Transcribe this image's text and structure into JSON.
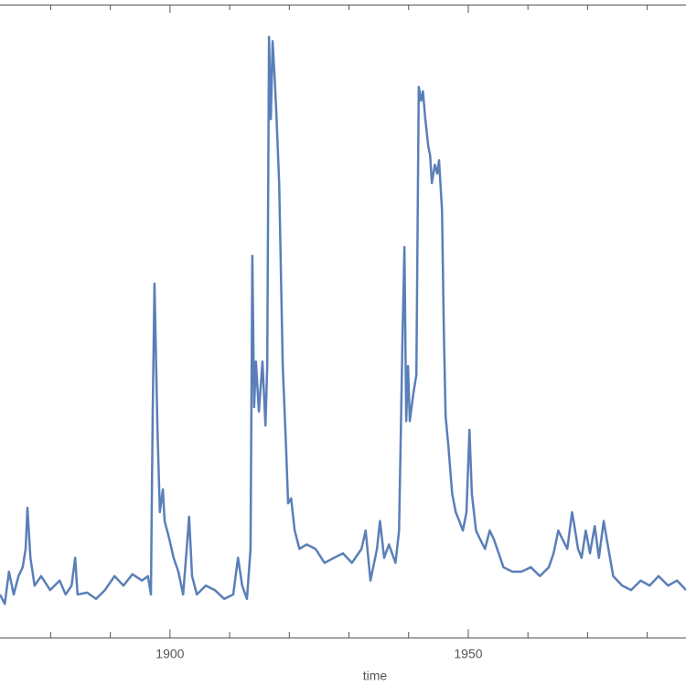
{
  "chart_data": {
    "type": "line",
    "x_label": "time",
    "xlim": [
      1871.5,
      1986.5
    ],
    "ylim": [
      0,
      100
    ],
    "xticks": [
      1900,
      1950
    ],
    "xminorticks": [
      1880,
      1890,
      1910,
      1920,
      1930,
      1940,
      1960,
      1970,
      1980
    ],
    "series": [
      {
        "color": "#5a7fb8",
        "x": [
          1871.5,
          1872.3,
          1873.0,
          1873.8,
          1874.6,
          1875.3,
          1875.8,
          1876.1,
          1876.6,
          1877.3,
          1878.4,
          1879.9,
          1881.5,
          1882.5,
          1883.5,
          1884.1,
          1884.5,
          1886.1,
          1887.6,
          1889.1,
          1890.7,
          1892.2,
          1893.7,
          1895.3,
          1896.3,
          1896.8,
          1897.1,
          1897.4,
          1897.9,
          1898.3,
          1898.8,
          1899.1,
          1899.9,
          1900.6,
          1901.4,
          1902.2,
          1902.8,
          1903.2,
          1903.7,
          1904.5,
          1906.0,
          1907.5,
          1909.1,
          1910.6,
          1911.4,
          1912.1,
          1912.9,
          1913.5,
          1913.8,
          1914.1,
          1914.4,
          1914.9,
          1915.5,
          1916.0,
          1916.3,
          1916.6,
          1916.9,
          1917.2,
          1917.5,
          1917.8,
          1918.3,
          1918.6,
          1918.9,
          1919.4,
          1919.8,
          1920.3,
          1920.9,
          1921.7,
          1922.9,
          1924.4,
          1925.9,
          1927.5,
          1929.0,
          1930.5,
          1932.1,
          1932.8,
          1933.6,
          1934.7,
          1935.2,
          1935.9,
          1936.7,
          1937.8,
          1938.4,
          1939.0,
          1939.3,
          1939.6,
          1939.9,
          1940.2,
          1940.8,
          1941.3,
          1941.7,
          1942.1,
          1942.4,
          1942.8,
          1943.3,
          1943.6,
          1943.9,
          1944.4,
          1944.8,
          1945.1,
          1945.6,
          1945.9,
          1946.2,
          1946.7,
          1947.3,
          1947.9,
          1948.5,
          1949.1,
          1949.7,
          1950.2,
          1950.6,
          1951.3,
          1952.0,
          1952.8,
          1953.6,
          1954.3,
          1955.1,
          1955.9,
          1957.4,
          1958.9,
          1960.5,
          1962.0,
          1963.5,
          1964.3,
          1965.1,
          1965.8,
          1966.6,
          1967.4,
          1967.8,
          1968.4,
          1969.0,
          1969.7,
          1970.4,
          1971.2,
          1971.9,
          1972.7,
          1973.5,
          1974.3,
          1975.8,
          1977.3,
          1978.9,
          1980.4,
          1981.9,
          1983.5,
          1985.0,
          1986.5
        ],
        "values": [
          6.8,
          5.3,
          10.4,
          6.8,
          9.7,
          11.1,
          14.0,
          20.5,
          12.6,
          8.2,
          9.7,
          7.5,
          9.0,
          6.8,
          8.2,
          12.6,
          6.8,
          7.1,
          6.1,
          7.5,
          9.7,
          8.2,
          10.0,
          9.0,
          9.7,
          6.8,
          35.7,
          55.9,
          32.8,
          19.8,
          23.4,
          18.4,
          15.5,
          12.6,
          10.4,
          6.8,
          14.0,
          19.1,
          9.7,
          6.8,
          8.2,
          7.5,
          6.1,
          6.8,
          12.6,
          8.2,
          6.1,
          14.0,
          60.3,
          36.4,
          43.6,
          35.7,
          43.6,
          33.5,
          42.9,
          94.9,
          81.9,
          94.2,
          89.2,
          83.4,
          71.8,
          57.4,
          42.9,
          31.4,
          21.2,
          22.0,
          16.9,
          14.0,
          14.7,
          14.0,
          11.8,
          12.6,
          13.3,
          11.8,
          14.0,
          16.9,
          9.0,
          14.0,
          18.4,
          12.6,
          14.7,
          11.8,
          16.9,
          48.7,
          61.7,
          34.2,
          42.9,
          34.2,
          38.6,
          41.5,
          87.0,
          84.8,
          86.3,
          81.9,
          77.6,
          76.2,
          71.8,
          74.7,
          73.3,
          75.4,
          67.5,
          48.7,
          35.0,
          29.9,
          22.7,
          19.8,
          18.4,
          16.9,
          19.8,
          32.8,
          22.7,
          16.9,
          15.5,
          14.0,
          16.9,
          15.5,
          13.3,
          11.1,
          10.4,
          10.4,
          11.1,
          9.7,
          11.1,
          13.3,
          16.9,
          15.5,
          14.0,
          19.8,
          17.6,
          14.0,
          12.6,
          16.9,
          13.3,
          17.6,
          12.6,
          18.4,
          14.0,
          9.7,
          8.2,
          7.5,
          9.0,
          8.2,
          9.7,
          8.2,
          9.0,
          7.5
        ]
      }
    ]
  }
}
